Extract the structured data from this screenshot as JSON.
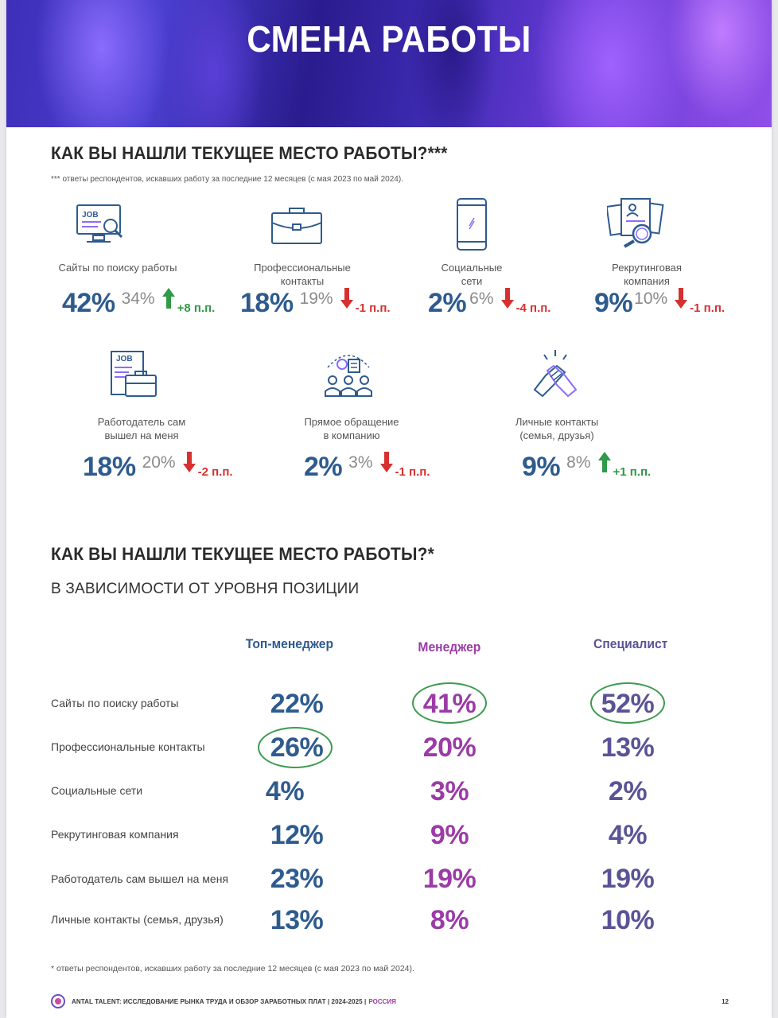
{
  "header": {
    "title": "СМЕНА РАБОТЫ"
  },
  "section1": {
    "title": "КАК ВЫ НАШЛИ ТЕКУЩЕЕ МЕСТО РАБОТЫ?***",
    "note": "*** ответы респондентов, искавших работу за последние 12 месяцев (с мая 2023 по май 2024).",
    "items": [
      {
        "label_line1": "Сайты по поиску работы",
        "label_line2": "",
        "value": "42%",
        "prev": "34%",
        "direction": "up",
        "delta": "+8 п.п.",
        "icon": "job-search-computer-icon"
      },
      {
        "label_line1": "Профессиональные",
        "label_line2": "контакты",
        "value": "18%",
        "prev": "19%",
        "direction": "down",
        "delta": "-1 п.п.",
        "icon": "briefcase-icon"
      },
      {
        "label_line1": "Социальные",
        "label_line2": "сети",
        "value": "2%",
        "prev": "6%",
        "direction": "down",
        "delta": "-4 п.п.",
        "icon": "smartphone-icon"
      },
      {
        "label_line1": "Рекрутинговая",
        "label_line2": "компания",
        "value": "9%",
        "prev": "10%",
        "direction": "down",
        "delta": "-1 п.п.",
        "icon": "resume-magnifier-icon"
      },
      {
        "label_line1": "Работодатель сам",
        "label_line2": "вышел на меня",
        "value": "18%",
        "prev": "20%",
        "direction": "down",
        "delta": "-2 п.п.",
        "icon": "job-offer-briefcase-icon"
      },
      {
        "label_line1": "Прямое обращение",
        "label_line2": "в компанию",
        "value": "2%",
        "prev": "3%",
        "direction": "down",
        "delta": "-1 п.п.",
        "icon": "team-idea-icon"
      },
      {
        "label_line1": "Личные контакты",
        "label_line2": "(семья, друзья)",
        "value": "9%",
        "prev": "8%",
        "direction": "up",
        "delta": "+1 п.п.",
        "icon": "handshake-icon"
      }
    ]
  },
  "section2": {
    "title": "КАК ВЫ НАШЛИ ТЕКУЩЕЕ МЕСТО РАБОТЫ?*",
    "subtitle": "В ЗАВИСИМОСТИ ОТ УРОВНЯ ПОЗИЦИИ",
    "columns": [
      "Топ-менеджер",
      "Менеджер",
      "Специалист"
    ],
    "column_colors": [
      "#2e5b8e",
      "#9b3ba6",
      "#5a5396"
    ],
    "rows": [
      {
        "label": "Сайты по поиску работы",
        "values": [
          "22%",
          "41%",
          "52%"
        ]
      },
      {
        "label": "Профессиональные контакты",
        "values": [
          "26%",
          "20%",
          "13%"
        ]
      },
      {
        "label": "Социальные сети",
        "values": [
          "4%",
          "3%",
          "2%"
        ]
      },
      {
        "label": "Рекрутинговая компания",
        "values": [
          "12%",
          "9%",
          "4%"
        ]
      },
      {
        "label": "Работодатель сам вышел на меня",
        "values": [
          "23%",
          "19%",
          "19%"
        ]
      },
      {
        "label": "Личные контакты (семья, друзья)",
        "values": [
          "13%",
          "8%",
          "10%"
        ]
      }
    ],
    "footnote": "* ответы респондентов, искавших работу за последние 12 месяцев (с мая 2023 по май 2024)."
  },
  "footer": {
    "text": "ANTAL TALENT: ИССЛЕДОВАНИЕ РЫНКА ТРУДА И ОБЗОР ЗАРАБОТНЫХ ПЛАТ | 2024-2025 |",
    "country": "РОССИЯ",
    "page": "12"
  },
  "colors": {
    "up": "#2f9a47",
    "down": "#d63030",
    "highlight_ring": "#3d9a4f"
  }
}
